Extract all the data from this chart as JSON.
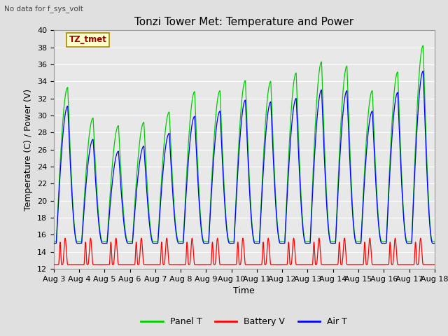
{
  "title": "Tonzi Tower Met: Temperature and Power",
  "xlabel": "Time",
  "ylabel": "Temperature (C) / Power (V)",
  "top_left_text": "No data for f_sys_volt",
  "annotation_label": "TZ_tmet",
  "ylim": [
    12,
    40
  ],
  "yticks": [
    12,
    14,
    16,
    18,
    20,
    22,
    24,
    26,
    28,
    30,
    32,
    34,
    36,
    38,
    40
  ],
  "x_start": 3,
  "x_end": 18,
  "xtick_labels": [
    "Aug 3",
    "Aug 4",
    "Aug 5",
    "Aug 6",
    "Aug 7",
    "Aug 8",
    "Aug 9",
    "Aug 10",
    "Aug 11",
    "Aug 12",
    "Aug 13",
    "Aug 14",
    "Aug 15",
    "Aug 16",
    "Aug 17",
    "Aug 18"
  ],
  "xtick_positions": [
    3,
    4,
    5,
    6,
    7,
    8,
    9,
    10,
    11,
    12,
    13,
    14,
    15,
    16,
    17,
    18
  ],
  "panel_color": "#00CC00",
  "battery_color": "#FF0000",
  "air_color": "#0000FF",
  "background_color": "#E0E0E0",
  "plot_bg_color": "#E8E8E8",
  "grid_color": "#FFFFFF",
  "legend_items": [
    "Panel T",
    "Battery V",
    "Air T"
  ],
  "panel_night_min": 15.2,
  "panel_day_peaks": [
    33.3,
    29.7,
    28.8,
    29.2,
    30.4,
    32.8,
    32.9,
    34.1,
    34.0,
    35.0,
    36.3,
    35.8,
    32.9,
    35.1,
    38.2
  ],
  "air_night_min": 15.0,
  "air_day_peaks": [
    31.1,
    27.2,
    25.8,
    26.4,
    27.9,
    29.9,
    30.5,
    31.8,
    31.6,
    32.0,
    33.0,
    32.9,
    30.5,
    32.7,
    35.2
  ],
  "battery_base": 12.5,
  "battery_peak": 15.6,
  "title_fontsize": 11,
  "axis_label_fontsize": 9,
  "tick_fontsize": 8,
  "legend_fontsize": 9,
  "figwidth": 6.4,
  "figheight": 4.8,
  "dpi": 100
}
